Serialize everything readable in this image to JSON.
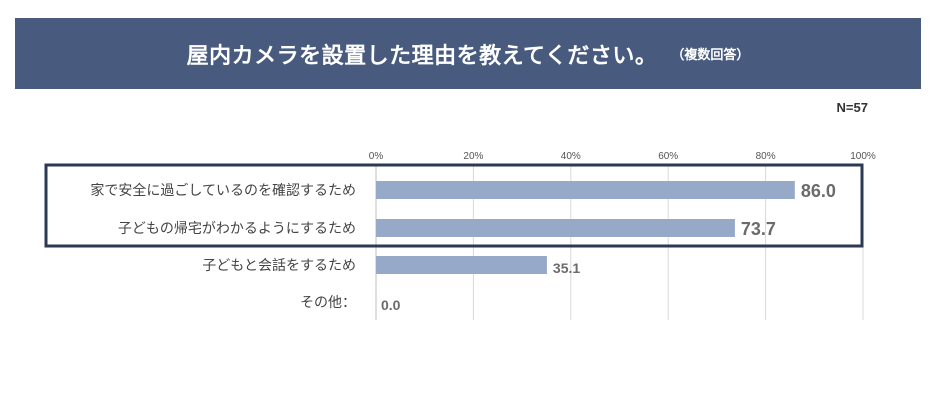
{
  "header": {
    "title": "屋内カメラを設置した理由を教えてください。",
    "subtitle": "（複数回答）"
  },
  "sample_size": "N=57",
  "colors": {
    "banner": "#485b7e",
    "bar": "#97a9c8",
    "highlight_border": "#2b3a52"
  },
  "chart_data": {
    "type": "bar",
    "orientation": "horizontal",
    "categories": [
      "家で安全に過ごしているのを確認するため",
      "子どもの帰宅がわかるようにするため",
      "子どもと会話をするため",
      "その他："
    ],
    "values": [
      86.0,
      73.7,
      35.1,
      0.0
    ],
    "value_labels": [
      "86.0",
      "73.7",
      "35.1",
      "0.0"
    ],
    "xlim": [
      0,
      100
    ],
    "ticks": [
      "0%",
      "20%",
      "40%",
      "60%",
      "80%",
      "100%"
    ],
    "grid": true,
    "highlighted_categories": [
      0,
      1
    ]
  }
}
